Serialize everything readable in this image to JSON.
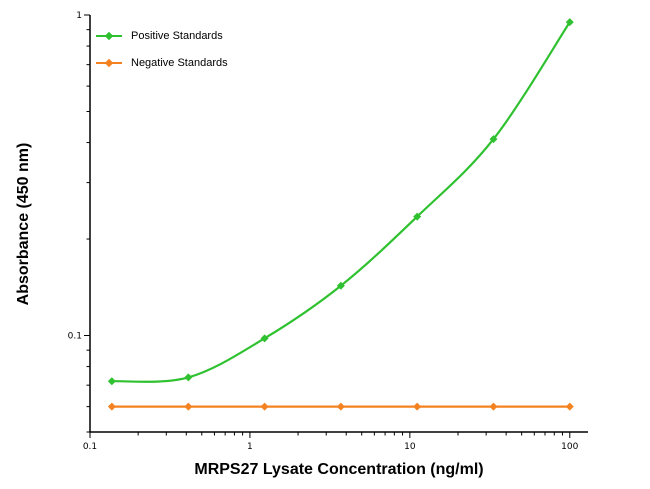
{
  "figure": {
    "background": "#ffffff"
  },
  "chart_data": {
    "type": "line",
    "title": "",
    "xlabel": "MRPS27 Lysate Concentration (ng/ml)",
    "ylabel": "Absorbance (450 nm)",
    "x_scale": "log",
    "y_scale": "log",
    "xlim": [
      0.1,
      130
    ],
    "ylim": [
      0.05,
      1
    ],
    "grid": false,
    "legend_position": "top-left",
    "x_ticks": [
      {
        "value": 0.1,
        "label": "0.1"
      },
      {
        "value": 1,
        "label": "1"
      },
      {
        "value": 10,
        "label": "10"
      },
      {
        "value": 100,
        "label": "100"
      }
    ],
    "y_ticks": [
      {
        "value": 0.1,
        "label": "0.1"
      },
      {
        "value": 1,
        "label": "1"
      }
    ],
    "x": [
      0.137,
      0.412,
      1.235,
      3.704,
      11.111,
      33.333,
      100
    ],
    "series": [
      {
        "name": "Positive Standards",
        "color": "#2fc12f",
        "smooth": true,
        "values": [
          0.072,
          0.074,
          0.098,
          0.143,
          0.235,
          0.41,
          0.95
        ]
      },
      {
        "name": "Negative Standards",
        "color": "#f58220",
        "smooth": false,
        "values": [
          0.06,
          0.06,
          0.06,
          0.06,
          0.06,
          0.06,
          0.06
        ]
      }
    ]
  }
}
